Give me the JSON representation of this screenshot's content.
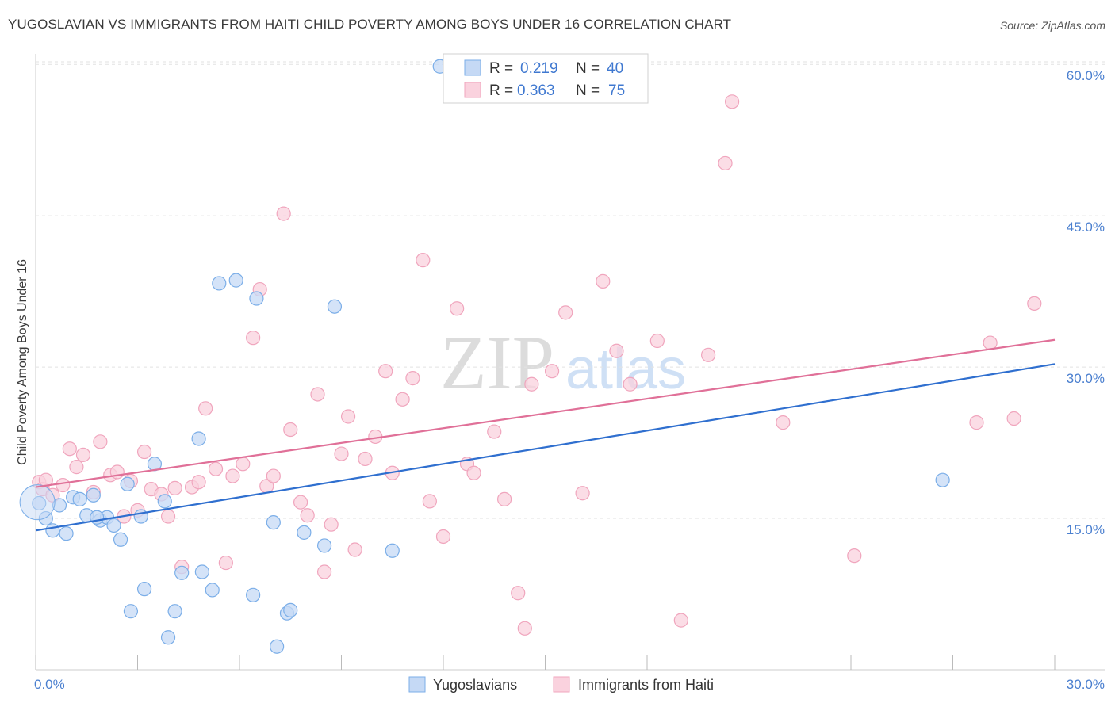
{
  "title": "YUGOSLAVIAN VS IMMIGRANTS FROM HAITI CHILD POVERTY AMONG BOYS UNDER 16 CORRELATION CHART",
  "source": "Source: ZipAtlas.com",
  "watermark": {
    "zip": "ZIP",
    "atlas": "atlas"
  },
  "chart_data": {
    "type": "scatter",
    "ylabel": "Child Poverty Among Boys Under 16",
    "xlabel": "",
    "xlim": [
      0,
      30
    ],
    "ylim": [
      0,
      60
    ],
    "x_tick_labels": [
      "0.0%",
      "30.0%"
    ],
    "y_tick_labels": [
      "15.0%",
      "30.0%",
      "45.0%",
      "60.0%"
    ],
    "y_tick_values": [
      15,
      30,
      45,
      60
    ],
    "legend": {
      "entries": [
        {
          "r_label": "R =",
          "r_value": "0.219",
          "n_label": "N =",
          "n_value": "40"
        },
        {
          "r_label": "R =",
          "r_value": "0.363",
          "n_label": "N =",
          "n_value": "75"
        }
      ]
    },
    "series": [
      {
        "name": "Yugoslavians",
        "color": "#7baee8",
        "fill": "#c5d9f5",
        "line_color": "#2f6fcf",
        "trend": {
          "x0": 0,
          "y0": 13.8,
          "x1": 30,
          "y1": 30.3
        },
        "points": [
          [
            0.1,
            16.5
          ],
          [
            0.3,
            15.0
          ],
          [
            0.5,
            13.8
          ],
          [
            0.7,
            16.3
          ],
          [
            0.9,
            13.5
          ],
          [
            1.1,
            17.1
          ],
          [
            1.3,
            16.9
          ],
          [
            1.5,
            15.3
          ],
          [
            1.7,
            17.3
          ],
          [
            1.9,
            14.8
          ],
          [
            2.1,
            15.1
          ],
          [
            2.3,
            14.3
          ],
          [
            2.5,
            12.9
          ],
          [
            2.7,
            18.4
          ],
          [
            2.8,
            5.8
          ],
          [
            3.1,
            15.2
          ],
          [
            3.2,
            8.0
          ],
          [
            3.5,
            20.4
          ],
          [
            3.8,
            16.7
          ],
          [
            3.9,
            3.2
          ],
          [
            4.1,
            5.8
          ],
          [
            4.3,
            9.6
          ],
          [
            4.8,
            22.9
          ],
          [
            4.9,
            9.7
          ],
          [
            5.2,
            7.9
          ],
          [
            5.4,
            38.3
          ],
          [
            5.9,
            38.6
          ],
          [
            6.4,
            7.4
          ],
          [
            6.5,
            36.8
          ],
          [
            7.0,
            14.6
          ],
          [
            7.1,
            2.3
          ],
          [
            7.4,
            5.6
          ],
          [
            7.5,
            5.9
          ],
          [
            7.9,
            13.6
          ],
          [
            8.5,
            12.3
          ],
          [
            8.8,
            36.0
          ],
          [
            10.5,
            11.8
          ],
          [
            11.9,
            59.8
          ],
          [
            26.7,
            18.8
          ],
          [
            1.8,
            15.1
          ]
        ]
      },
      {
        "name": "Immigrants from Haiti",
        "color": "#f0a5bd",
        "fill": "#fad2de",
        "line_color": "#e07098",
        "trend": {
          "x0": 0,
          "y0": 18.1,
          "x1": 30,
          "y1": 32.7
        },
        "points": [
          [
            0.1,
            18.6
          ],
          [
            0.2,
            17.9
          ],
          [
            0.3,
            18.8
          ],
          [
            0.5,
            17.3
          ],
          [
            0.8,
            18.3
          ],
          [
            1.0,
            21.9
          ],
          [
            1.2,
            20.1
          ],
          [
            1.4,
            21.3
          ],
          [
            1.7,
            17.6
          ],
          [
            1.9,
            22.6
          ],
          [
            2.2,
            19.3
          ],
          [
            2.4,
            19.6
          ],
          [
            2.6,
            15.2
          ],
          [
            2.8,
            18.7
          ],
          [
            3.0,
            15.8
          ],
          [
            3.2,
            21.6
          ],
          [
            3.4,
            17.9
          ],
          [
            3.7,
            17.4
          ],
          [
            3.9,
            15.2
          ],
          [
            4.1,
            18.0
          ],
          [
            4.3,
            10.2
          ],
          [
            4.6,
            18.1
          ],
          [
            4.8,
            18.6
          ],
          [
            5.0,
            25.9
          ],
          [
            5.3,
            19.9
          ],
          [
            5.6,
            10.6
          ],
          [
            5.8,
            19.2
          ],
          [
            6.1,
            20.4
          ],
          [
            6.4,
            32.9
          ],
          [
            6.6,
            37.7
          ],
          [
            6.8,
            18.2
          ],
          [
            7.0,
            19.2
          ],
          [
            7.3,
            45.2
          ],
          [
            7.5,
            23.8
          ],
          [
            7.8,
            16.6
          ],
          [
            8.0,
            15.3
          ],
          [
            8.3,
            27.3
          ],
          [
            8.5,
            9.7
          ],
          [
            8.7,
            14.4
          ],
          [
            9.0,
            21.4
          ],
          [
            9.2,
            25.1
          ],
          [
            9.4,
            11.9
          ],
          [
            9.7,
            20.9
          ],
          [
            10.0,
            23.1
          ],
          [
            10.3,
            29.6
          ],
          [
            10.5,
            19.5
          ],
          [
            10.8,
            26.8
          ],
          [
            11.1,
            28.9
          ],
          [
            11.4,
            40.6
          ],
          [
            11.6,
            16.7
          ],
          [
            12.0,
            13.2
          ],
          [
            12.4,
            35.8
          ],
          [
            12.7,
            20.4
          ],
          [
            12.9,
            19.5
          ],
          [
            13.5,
            23.6
          ],
          [
            13.8,
            16.9
          ],
          [
            14.2,
            7.6
          ],
          [
            14.4,
            4.1
          ],
          [
            14.6,
            28.3
          ],
          [
            15.2,
            29.6
          ],
          [
            15.6,
            35.4
          ],
          [
            16.1,
            17.5
          ],
          [
            16.7,
            38.5
          ],
          [
            17.1,
            31.6
          ],
          [
            17.5,
            28.3
          ],
          [
            18.3,
            32.6
          ],
          [
            19.0,
            4.9
          ],
          [
            19.8,
            31.2
          ],
          [
            20.3,
            50.2
          ],
          [
            20.5,
            56.3
          ],
          [
            22.0,
            24.5
          ],
          [
            24.1,
            11.3
          ],
          [
            27.7,
            24.5
          ],
          [
            28.1,
            32.4
          ],
          [
            28.8,
            24.9
          ]
        ]
      }
    ],
    "extra_points": {
      "haiti_far_right": [
        29.4,
        36.3
      ]
    }
  }
}
